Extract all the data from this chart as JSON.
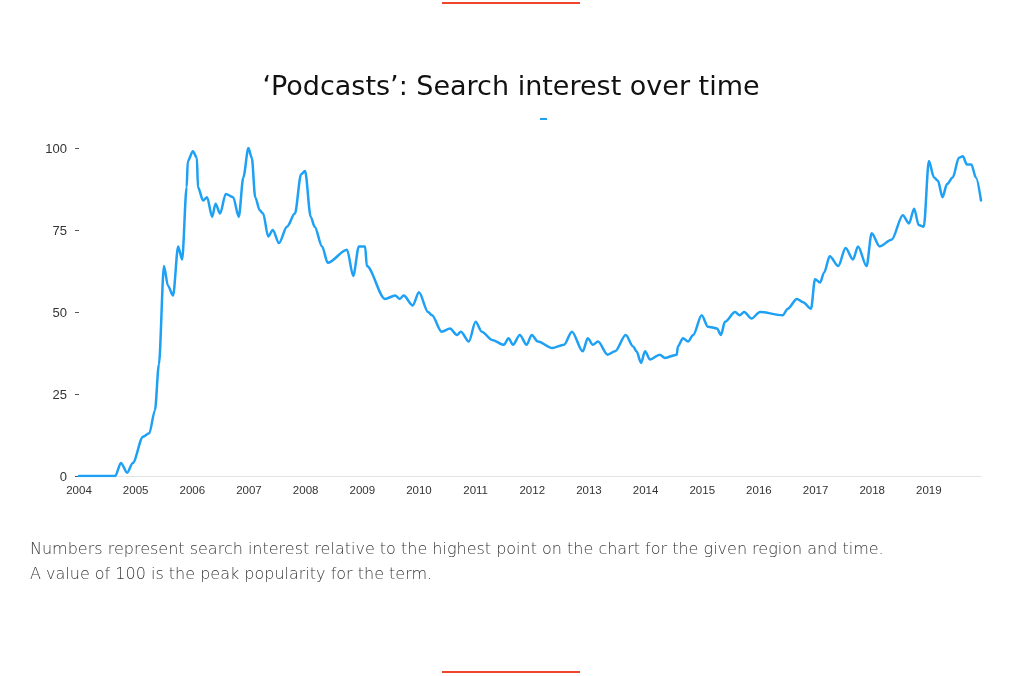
{
  "chart_data": {
    "type": "line",
    "title": "‘Podcasts’: Search interest over time",
    "annotations": [
      "Numbers represent search interest relative to the highest point on the chart for the given region and time.",
      "A value of 100 is the peak popularity for the term."
    ],
    "x": [
      2004.0,
      2004.5,
      2004.64,
      2004.74,
      2004.85,
      2004.95,
      2005.13,
      2005.24,
      2005.34,
      2005.41,
      2005.5,
      2005.57,
      2005.66,
      2005.75,
      2005.82,
      2005.9,
      2005.92,
      2006.01,
      2006.08,
      2006.1,
      2006.19,
      2006.26,
      2006.35,
      2006.41,
      2006.49,
      2006.59,
      2006.72,
      2006.82,
      2006.9,
      2006.99,
      2007.05,
      2007.11,
      2007.19,
      2007.25,
      2007.34,
      2007.42,
      2007.53,
      2007.67,
      2007.81,
      2007.92,
      2007.99,
      2008.09,
      2008.16,
      2008.29,
      2008.39,
      2008.73,
      2008.84,
      2008.94,
      2009.05,
      2009.08,
      2009.4,
      2009.58,
      2009.66,
      2009.73,
      2009.89,
      2010.0,
      2010.16,
      2010.23,
      2010.4,
      2010.55,
      2010.67,
      2010.74,
      2010.88,
      2011.0,
      2011.11,
      2011.29,
      2011.5,
      2011.58,
      2011.66,
      2011.78,
      2011.9,
      2011.99,
      2012.1,
      2012.35,
      2012.56,
      2012.7,
      2012.89,
      2012.98,
      2013.07,
      2013.16,
      2013.33,
      2013.46,
      2013.65,
      2013.78,
      2013.84,
      2013.92,
      2013.99,
      2014.08,
      2014.25,
      2014.34,
      2014.55,
      2014.57,
      2014.66,
      2014.75,
      2014.84,
      2014.99,
      2015.1,
      2015.26,
      2015.33,
      2015.4,
      2015.58,
      2015.66,
      2015.74,
      2015.87,
      2016.02,
      2016.42,
      2016.51,
      2016.67,
      2016.78,
      2016.92,
      2016.99,
      2017.08,
      2017.15,
      2017.25,
      2017.4,
      2017.53,
      2017.66,
      2017.75,
      2017.9,
      2017.99,
      2018.13,
      2018.34,
      2018.54,
      2018.65,
      2018.74,
      2018.82,
      2018.91,
      2019.0,
      2019.09,
      2019.16,
      2019.24,
      2019.32,
      2019.42,
      2019.53,
      2019.6,
      2019.67,
      2019.75,
      2019.83,
      2019.92
    ],
    "series": [
      {
        "color": "#1ea0f4",
        "values": [
          0,
          0,
          0,
          4,
          1,
          4,
          12,
          13,
          20,
          34,
          64,
          58,
          55,
          70,
          66,
          88,
          96,
          99,
          97,
          88,
          84,
          85,
          79,
          83,
          80,
          86,
          85,
          79,
          91,
          100,
          97,
          85,
          81,
          80,
          73,
          75,
          71,
          76,
          80,
          92,
          93,
          79,
          76,
          70,
          65,
          69,
          61,
          70,
          70,
          64,
          54,
          55,
          54,
          55,
          52,
          56,
          50,
          49,
          44,
          45,
          43,
          44,
          41,
          47,
          44,
          41.5,
          40,
          42,
          40,
          43,
          40,
          43,
          41,
          39,
          40,
          44,
          38,
          42,
          40,
          41,
          37,
          38,
          43,
          39.5,
          38,
          34.5,
          38,
          35.5,
          37,
          36,
          37,
          39.5,
          42,
          41,
          43,
          49,
          45.5,
          45,
          43,
          47,
          50,
          49,
          50,
          48,
          50,
          49,
          51,
          54,
          53,
          51,
          60,
          59,
          62,
          67,
          64,
          69.5,
          66,
          70,
          64,
          74,
          70,
          72,
          79.5,
          77,
          81.5,
          76.5,
          76,
          96,
          91,
          90,
          85,
          89,
          91,
          97,
          97.5,
          95,
          95,
          91,
          84
        ]
      }
    ],
    "xlim": [
      2004,
      2019.92
    ],
    "xticks": [
      2004,
      2005,
      2006,
      2007,
      2008,
      2009,
      2010,
      2011,
      2012,
      2013,
      2014,
      2015,
      2016,
      2017,
      2018,
      2019
    ],
    "ylim": [
      0,
      100
    ],
    "yticks": [
      0,
      25,
      50,
      75,
      100
    ],
    "marker": "none",
    "line_style": "solid"
  }
}
